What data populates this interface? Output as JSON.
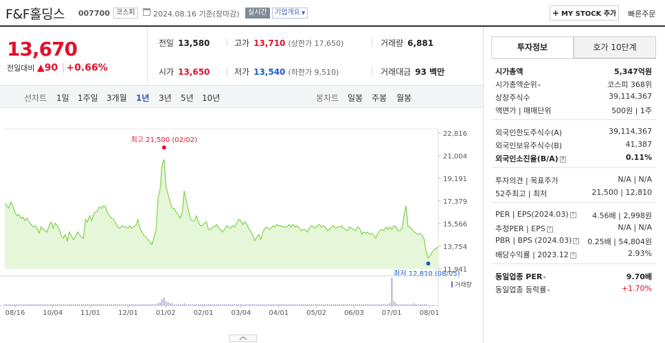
{
  "header": {
    "company": "F&F홀딩스",
    "code": "007700",
    "market": "코스피",
    "date": "2024.08.16  기준(장마감)",
    "realtime": "실시간",
    "overview": "기업개요",
    "mystock": "MY STOCK 추가",
    "quick_order": "빠른주문"
  },
  "price": {
    "current": "13,670",
    "change_label": "전일대비",
    "change_arrow": "▲",
    "change_value": "90",
    "change_pct": "+0.66%"
  },
  "stats": {
    "prev_label": "전일",
    "prev": "13,580",
    "high_label": "고가",
    "high": "13,710",
    "upper_limit": "(상한가 17,650)",
    "volume_label": "거래량",
    "volume": "6,881",
    "open_label": "시가",
    "open": "13,650",
    "low_label": "저가",
    "low": "13,540",
    "lower_limit": "(하한가 9,510)",
    "amount_label": "거래대금",
    "amount": "93 백만"
  },
  "tabs": {
    "line_label": "선차트",
    "line_items": [
      "1일",
      "1주일",
      "3개월",
      "1년",
      "3년",
      "5년",
      "10년"
    ],
    "active": "1년",
    "candle_label": "봉차트",
    "candle_items": [
      "일봉",
      "주봉",
      "월봉"
    ]
  },
  "chart_data": {
    "type": "area",
    "y_ticks": [
      "22,816",
      "21,004",
      "19,191",
      "17,379",
      "15,566",
      "13,754",
      "11,941"
    ],
    "ylim": [
      11941,
      22816
    ],
    "x_ticks": [
      "08/16",
      "10/04",
      "11/01",
      "12/01",
      "01/02",
      "02/01",
      "03/04",
      "04/01",
      "05/02",
      "06/03",
      "07/01",
      "08/01"
    ],
    "high_label": "최고 21,500 (02/02)",
    "low_label": "최저 12,810 (08/05)",
    "volume_label": "거래량",
    "line_color": "#7fd14a",
    "fill_color": "#e6f6d8",
    "series": [
      {
        "values": [
          17200,
          17000,
          16800,
          17300,
          17000,
          16500,
          16200,
          16300,
          16000,
          16100,
          15800,
          16000,
          15700,
          15500,
          15300,
          15400,
          15200,
          14800,
          15300,
          15100,
          15000,
          14900,
          15400,
          15700,
          15200,
          15600,
          15400,
          15100,
          14600,
          14400,
          14700,
          14200,
          14900,
          14600,
          14300,
          14500,
          14900,
          14700,
          14500,
          14400,
          15900,
          15700,
          16200,
          15800,
          16300,
          16500,
          16600,
          16900,
          16800,
          17000,
          16900,
          16400,
          16200,
          16000,
          15900,
          15600,
          15300,
          15200,
          15400,
          15300,
          15300,
          15200,
          15400,
          15200,
          15300,
          15400,
          15900,
          15200,
          14900,
          14600,
          14500,
          14300,
          14100,
          13900,
          14500,
          15000,
          17600,
          18300,
          20300,
          20700,
          18500,
          17900,
          17300,
          16800,
          16800,
          16500,
          16300,
          16000,
          16500,
          18200,
          17400,
          16700,
          16000,
          15800,
          15800,
          16200,
          15700,
          15400,
          15400,
          15600,
          15700,
          15100,
          15100,
          15300,
          15300,
          15500,
          15200,
          15100,
          14900,
          15100,
          15400,
          15300,
          15200,
          15400,
          15300,
          15600,
          15900,
          15800,
          15500,
          15700,
          15500,
          15200,
          14900,
          14600,
          14200,
          14500,
          14700,
          14300,
          14900,
          15200,
          15300,
          15100,
          15200,
          15400,
          15300,
          15500,
          15400,
          15400,
          15300,
          15300,
          15300,
          15500,
          15300,
          15500,
          15300,
          15400,
          15200,
          15000,
          15100,
          15100,
          14900,
          15200,
          15400,
          15300,
          15200,
          15400,
          15500,
          15300,
          15400,
          15300,
          15000,
          15100,
          15300,
          15400,
          15200,
          15300,
          15300,
          15400,
          15200,
          15100,
          15000,
          15300,
          15200,
          15100,
          15000,
          15300,
          15200,
          14700,
          14900,
          14800,
          14900,
          14700,
          14800,
          14600,
          14400,
          14800,
          15000,
          15100,
          15000,
          15300,
          15100,
          15300,
          15100,
          15400,
          15300,
          15000,
          15000,
          15200,
          16200,
          17000,
          15300,
          15300,
          15100,
          14900,
          14800,
          14700,
          14800,
          14600,
          14300,
          13300,
          12810,
          13000,
          13300,
          13500,
          13600,
          13670
        ]
      }
    ],
    "volume": [
      1,
      1,
      1,
      1,
      1,
      1,
      1,
      1,
      1,
      1,
      1,
      1,
      1,
      1,
      1,
      1,
      1,
      1,
      1,
      1,
      1,
      1,
      1,
      1,
      1,
      1,
      1,
      1,
      1,
      1,
      1,
      1,
      1,
      1,
      1,
      1,
      1,
      1,
      1,
      1,
      1,
      1,
      1,
      1,
      1,
      1,
      1,
      1,
      1,
      1,
      1,
      1,
      1,
      1,
      1,
      1,
      1,
      1,
      1,
      1,
      1,
      1,
      1,
      1,
      1,
      1,
      1,
      1,
      1,
      1,
      1,
      1,
      1,
      1,
      1,
      1,
      2,
      3,
      6,
      8,
      4,
      3,
      2,
      2,
      1,
      1,
      1,
      1,
      1,
      2,
      1,
      1,
      1,
      1,
      1,
      1,
      1,
      1,
      1,
      1,
      1,
      1,
      1,
      1,
      1,
      1,
      1,
      1,
      1,
      1,
      1,
      1,
      1,
      1,
      1,
      1,
      1,
      1,
      1,
      1,
      1,
      1,
      1,
      1,
      1,
      1,
      1,
      1,
      1,
      1,
      1,
      1,
      1,
      1,
      1,
      1,
      1,
      1,
      1,
      1,
      1,
      1,
      1,
      1,
      1,
      1,
      1,
      1,
      1,
      1,
      1,
      1,
      1,
      1,
      1,
      1,
      1,
      1,
      1,
      1,
      1,
      1,
      1,
      1,
      1,
      1,
      1,
      1,
      1,
      1,
      1,
      1,
      1,
      1,
      1,
      1,
      1,
      1,
      1,
      1,
      1,
      1,
      1,
      1,
      1,
      1,
      1,
      1,
      1,
      1,
      1,
      2,
      28,
      4,
      2,
      1,
      1,
      1,
      1,
      1,
      1,
      1,
      1,
      2,
      1,
      1,
      1,
      1,
      1,
      1
    ]
  },
  "info": {
    "tab_on": "투자정보",
    "tab_off": "호가 10단계",
    "rows": [
      {
        "l": "시가총액",
        "r": "5,347억원",
        "bold": true
      },
      {
        "l": "시가총액순위",
        "r": "코스피 368위",
        "tri": true
      },
      {
        "l": "상장주식수",
        "r": "39,114,367"
      },
      {
        "l": "액면가 | 매매단위",
        "r": "500원 | 1주"
      },
      {
        "l": "외국인한도주식수(A)",
        "r": "39,114,367"
      },
      {
        "l": "외국인보유주식수(B)",
        "r": "41,387"
      },
      {
        "l": "외국인소진율(B/A)",
        "r": "0.11%",
        "bold": true,
        "q": true
      },
      {
        "l": "투자의견 | 목표주가",
        "r": "N/A | N/A"
      },
      {
        "l": "52주최고 | 최저",
        "r": "21,500 | 12,810"
      },
      {
        "l": "PER | EPS(2024.03)",
        "r": "4.56배 | 2,998원",
        "q": true
      },
      {
        "l": "추정PER | EPS",
        "r": "N/A | N/A",
        "q": true
      },
      {
        "l": "PBR | BPS (2024.03)",
        "r": "0.25배 | 54,804원",
        "q": true
      },
      {
        "l": "배당수익률 | 2023.12",
        "r": "2.93%",
        "q": true
      },
      {
        "l": "동일업종 PER",
        "r": "9.70배",
        "bold": true,
        "tri": true
      },
      {
        "l": "동일업종 등락률",
        "r": "+1.70%",
        "tri": true,
        "red": true
      }
    ]
  }
}
